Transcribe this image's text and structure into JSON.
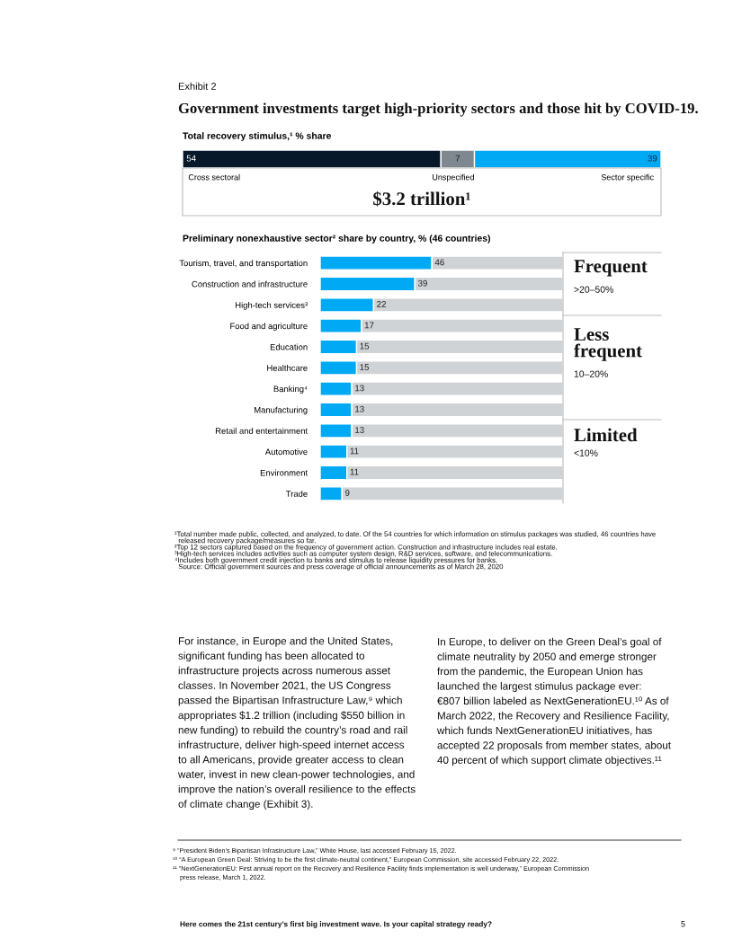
{
  "chart_data": [
    {
      "type": "bar",
      "orientation": "horizontal",
      "stacked": true,
      "title": "Total recovery stimulus,¹ % share",
      "categories": [
        null
      ],
      "xlim": [
        0,
        100
      ],
      "tick_labels": false,
      "data_labels": true,
      "series": [
        {
          "name": "Cross sectoral",
          "color": "#06182a",
          "values": [
            54
          ]
        },
        {
          "name": "Unspecified",
          "color": "#7f8890",
          "values": [
            7
          ]
        },
        {
          "name": "Sector specific",
          "color": "#00a9f4",
          "values": [
            39
          ]
        }
      ],
      "annotations": [
        "Exhibit 2",
        "Government investments target high-priority sectors and those hit by COVID-19.",
        "$3.2 trillion¹"
      ]
    },
    {
      "type": "bar",
      "orientation": "horizontal",
      "stacked": true,
      "title": "Preliminary nonexhaustive sector² share by country, % (46 countries)",
      "xlim": [
        0,
        100
      ],
      "tick_labels": "y",
      "categories": [
        "Tourism, travel, and transportation",
        "Construction and infrastructure",
        "High-tech services³",
        "Food and agriculture",
        "Education",
        "Healthcare",
        "Banking⁴",
        "Manufacturing",
        "Retail and entertainment",
        "Automotive",
        "Environment",
        "Trade"
      ],
      "series": [
        {
          "color": "#00a9f4",
          "values": [
            46,
            39,
            22,
            17,
            15,
            15,
            13,
            13,
            13,
            11,
            11,
            9
          ],
          "value_labels": [
            "46",
            "39",
            "22",
            "17",
            "15",
            "15",
            "13",
            "13",
            "13",
            "11",
            "11",
            "9"
          ]
        },
        {
          "color": "#d0d3d6",
          "values": [
            54,
            61,
            78,
            83,
            85,
            85,
            87,
            87,
            87,
            89,
            89,
            91
          ]
        }
      ],
      "annotations": [
        "Frequent",
        ">20–50%",
        "Less\nfrequent",
        "10–20%",
        "Limited",
        "<10%",
        "¹Total number made public, collected, and analyzed, to date. Of the 54 countries for which information on stimulus packages was studied, 46 countries have\n  released recovery package/measures so far.\n²Top 12 sectors captured based on the frequency of government action. Construction and infrastructure includes real estate.\n³High-tech services includes activities such as computer system design, R&D services, software, and telecommunications.\n⁴Includes both government credit injection to banks and stimulus to release liquidity pressures for banks.\n  Source: Official government sources and press coverage of official announcements as of March 28, 2020",
        "For instance, in Europe and the United States,\nsignificant funding has been allocated to\ninfrastructure projects across numerous asset\nclasses. In November 2021, the US Congress\npassed the Bipartisan Infrastructure Law,⁹ which\nappropriates $1.2 trillion (including $550 billion in\nnew funding) to rebuild the country’s road and rail\ninfrastructure, deliver high-speed internet access\nto all Americans, provide greater access to clean\nwater, invest in new clean-power technologies, and\nimprove the nation’s overall resilience to the effects\nof climate change (Exhibit 3).",
        "In Europe, to deliver on the Green Deal’s goal of\nclimate neutrality by 2050 and emerge stronger\nfrom the pandemic, the European Union has\nlaunched the largest stimulus package ever:\n€807 billion labeled as NextGenerationEU.¹⁰ As of\nMarch 2022, the Recovery and Resilience Facility,\nwhich funds NextGenerationEU initiatives, has\naccepted 22 proposals from member states, about\n40 percent of which support climate objectives.¹¹",
        "⁹ “President Biden’s Bipartisan Infrastructure Law,” White House, last accessed February 15, 2022.\n¹⁰ “A European Green Deal: Striving to be the first climate-neutral continent,” European Commission, site accessed February 22, 2022.\n¹¹ “NextGenerationEU: First annual report on the Recovery and Resilience Facility finds implementation is well underway,” European Commission\n    press release, March 1, 2022.",
        "Here comes the 21st century’s first big investment wave. Is your capital strategy ready?",
        "5"
      ]
    }
  ]
}
